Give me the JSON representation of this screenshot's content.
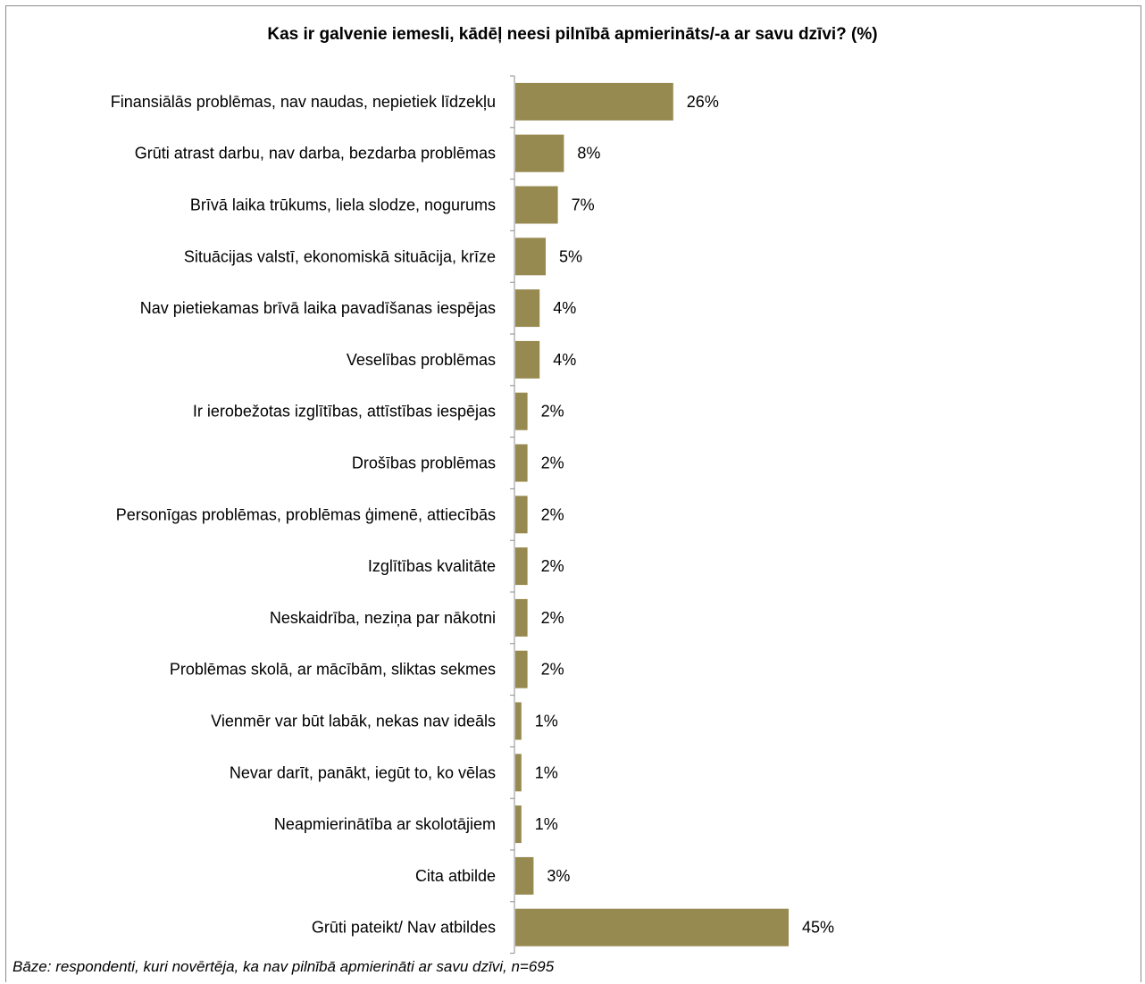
{
  "chart_data": {
    "type": "bar",
    "orientation": "horizontal",
    "title": "Kas ir galvenie iemesli, kādēļ neesi pilnībā apmierināts/-a ar savu dzīvi? (%)",
    "categories": [
      "Finansiālās problēmas, nav naudas, nepietiek līdzekļu",
      "Grūti atrast darbu, nav darba, bezdarba problēmas",
      "Brīvā laika trūkums, liela slodze, nogurums",
      "Situācijas valstī, ekonomiskā situācija, krīze",
      "Nav pietiekamas brīvā laika pavadīšanas iespējas",
      "Veselības problēmas",
      "Ir ierobežotas izglītības, attīstības iespējas",
      "Drošības problēmas",
      "Personīgas problēmas, problēmas ģimenē, attiecībās",
      "Izglītības kvalitāte",
      "Neskaidrība, neziņa par nākotni",
      "Problēmas skolā, ar mācībām, sliktas sekmes",
      "Vienmēr var būt labāk, nekas nav ideāls",
      "Nevar darīt, panākt, iegūt to, ko vēlas",
      "Neapmierinātība ar skolotājiem",
      "Cita atbilde",
      "Grūti pateikt/ Nav atbildes"
    ],
    "values": [
      26,
      8,
      7,
      5,
      4,
      4,
      2,
      2,
      2,
      2,
      2,
      2,
      1,
      1,
      1,
      3,
      45
    ],
    "data_labels": [
      "26%",
      "8%",
      "7%",
      "5%",
      "4%",
      "4%",
      "2%",
      "2%",
      "2%",
      "2%",
      "2%",
      "2%",
      "1%",
      "1%",
      "1%",
      "3%",
      "45%"
    ],
    "bar_color": "#978a51",
    "grid": false
  },
  "footnote": "Bāze: respondenti, kuri novērtēja, ka nav pilnībā apmierināti ar savu dzīvi, n=695"
}
